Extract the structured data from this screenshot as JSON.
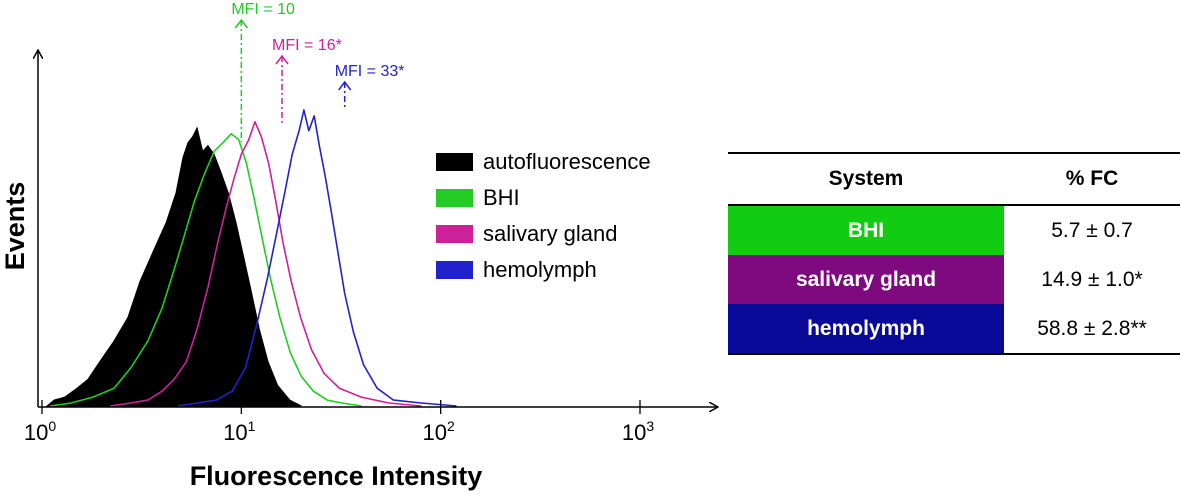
{
  "chart_data": {
    "type": "area",
    "x_scale": "log",
    "xlim": [
      1,
      1000
    ],
    "xlabel": "Fluorescence Intensity",
    "ylabel": "Events",
    "x_ticks": [
      {
        "value": 1,
        "base": "10",
        "exp": "0"
      },
      {
        "value": 10,
        "base": "10",
        "exp": "1"
      },
      {
        "value": 100,
        "base": "10",
        "exp": "2"
      },
      {
        "value": 1000,
        "base": "10",
        "exp": "3"
      }
    ],
    "y_range": [
      0,
      1
    ],
    "series": [
      {
        "name": "autofluorescence",
        "color": "#000000",
        "filled": true,
        "points": [
          [
            1.06,
            0
          ],
          [
            1.15,
            0.02
          ],
          [
            1.3,
            0.03
          ],
          [
            1.5,
            0.06
          ],
          [
            1.7,
            0.09
          ],
          [
            1.95,
            0.15
          ],
          [
            2.3,
            0.22
          ],
          [
            2.7,
            0.3
          ],
          [
            3.1,
            0.42
          ],
          [
            3.6,
            0.52
          ],
          [
            4.2,
            0.62
          ],
          [
            4.7,
            0.72
          ],
          [
            5.1,
            0.84
          ],
          [
            5.4,
            0.89
          ],
          [
            5.7,
            0.91
          ],
          [
            6.0,
            0.94
          ],
          [
            6.4,
            0.86
          ],
          [
            6.8,
            0.88
          ],
          [
            7.3,
            0.85
          ],
          [
            7.9,
            0.79
          ],
          [
            8.6,
            0.72
          ],
          [
            9.4,
            0.62
          ],
          [
            10.3,
            0.5
          ],
          [
            11.2,
            0.39
          ],
          [
            12.3,
            0.26
          ],
          [
            13.6,
            0.15
          ],
          [
            15.2,
            0.07
          ],
          [
            17.5,
            0.02
          ],
          [
            20,
            0
          ]
        ]
      },
      {
        "name": "BHI",
        "color": "#22cc22",
        "filled": false,
        "points": [
          [
            1.1,
            0
          ],
          [
            1.4,
            0.01
          ],
          [
            1.8,
            0.03
          ],
          [
            2.3,
            0.06
          ],
          [
            2.8,
            0.13
          ],
          [
            3.4,
            0.22
          ],
          [
            4.0,
            0.33
          ],
          [
            4.6,
            0.46
          ],
          [
            5.2,
            0.58
          ],
          [
            5.8,
            0.69
          ],
          [
            6.5,
            0.78
          ],
          [
            7.3,
            0.86
          ],
          [
            8.1,
            0.89
          ],
          [
            8.9,
            0.92
          ],
          [
            9.7,
            0.9
          ],
          [
            10.6,
            0.82
          ],
          [
            11.6,
            0.7
          ],
          [
            12.7,
            0.57
          ],
          [
            14.0,
            0.43
          ],
          [
            15.6,
            0.3
          ],
          [
            17.6,
            0.18
          ],
          [
            20,
            0.1
          ],
          [
            23,
            0.05
          ],
          [
            27,
            0.02
          ],
          [
            32,
            0.01
          ],
          [
            40,
            0
          ]
        ]
      },
      {
        "name": "salivary gland",
        "color": "#cc2299",
        "filled": false,
        "points": [
          [
            2.2,
            0
          ],
          [
            2.8,
            0.01
          ],
          [
            3.4,
            0.02
          ],
          [
            4.0,
            0.05
          ],
          [
            4.6,
            0.09
          ],
          [
            5.3,
            0.15
          ],
          [
            6.0,
            0.26
          ],
          [
            6.8,
            0.4
          ],
          [
            7.6,
            0.55
          ],
          [
            8.4,
            0.67
          ],
          [
            9.2,
            0.77
          ],
          [
            10.0,
            0.85
          ],
          [
            10.9,
            0.9
          ],
          [
            11.7,
            0.96
          ],
          [
            12.6,
            0.91
          ],
          [
            13.7,
            0.82
          ],
          [
            14.9,
            0.69
          ],
          [
            16.2,
            0.55
          ],
          [
            17.8,
            0.42
          ],
          [
            19.8,
            0.3
          ],
          [
            22.5,
            0.19
          ],
          [
            26,
            0.11
          ],
          [
            31,
            0.06
          ],
          [
            40,
            0.03
          ],
          [
            55,
            0.01
          ],
          [
            80,
            0
          ]
        ]
      },
      {
        "name": "hemolymph",
        "color": "#2222cc",
        "filled": false,
        "points": [
          [
            4.8,
            0
          ],
          [
            6.0,
            0.01
          ],
          [
            7.5,
            0.02
          ],
          [
            9.0,
            0.05
          ],
          [
            10.5,
            0.13
          ],
          [
            12.0,
            0.28
          ],
          [
            13.5,
            0.43
          ],
          [
            15.0,
            0.58
          ],
          [
            16.5,
            0.72
          ],
          [
            18.0,
            0.85
          ],
          [
            19.5,
            0.93
          ],
          [
            20.6,
            1.0
          ],
          [
            21.8,
            0.93
          ],
          [
            23.2,
            0.98
          ],
          [
            24.6,
            0.88
          ],
          [
            26.3,
            0.78
          ],
          [
            28.2,
            0.66
          ],
          [
            30.5,
            0.52
          ],
          [
            33,
            0.38
          ],
          [
            36.5,
            0.25
          ],
          [
            41,
            0.14
          ],
          [
            48,
            0.06
          ],
          [
            58,
            0.02
          ],
          [
            80,
            0.01
          ],
          [
            120,
            0
          ]
        ]
      }
    ],
    "annotations": [
      {
        "text": "MFI = 10",
        "x": 10,
        "color": "#22cc22"
      },
      {
        "text": "MFI = 16*",
        "x": 16,
        "color": "#cc2299"
      },
      {
        "text": "MFI = 33*",
        "x": 33,
        "color": "#2222cc"
      }
    ]
  },
  "table": {
    "headers": [
      "System",
      "% FC"
    ],
    "rows": [
      {
        "system": "BHI",
        "value": "5.7 ± 0.7",
        "color": "#11cc11"
      },
      {
        "system": "salivary gland",
        "value": "14.9 ± 1.0*",
        "color": "#7f0a7f"
      },
      {
        "system": "hemolymph",
        "value": "58.8 ± 2.8**",
        "color": "#0a0a99"
      }
    ]
  }
}
